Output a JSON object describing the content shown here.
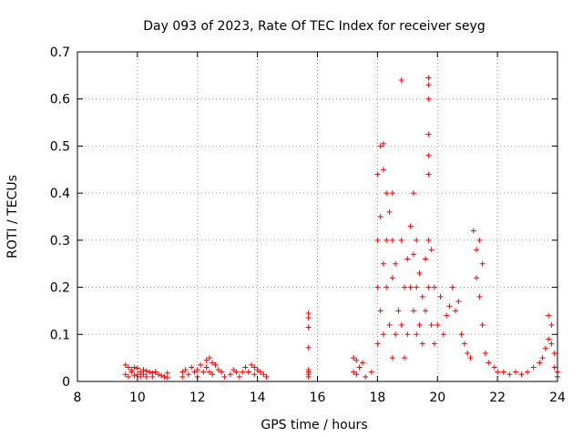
{
  "chart_data": {
    "type": "scatter",
    "title": "Day 093 of 2023, Rate Of TEC Index for receiver seyg",
    "xlabel": "GPS time / hours",
    "ylabel": "ROTI / TECUs",
    "xlim": [
      8,
      24
    ],
    "ylim": [
      0,
      0.7
    ],
    "xticks": [
      8,
      10,
      12,
      14,
      16,
      18,
      20,
      22,
      24
    ],
    "yticks": [
      0,
      0.1,
      0.2,
      0.3,
      0.4,
      0.5,
      0.6,
      0.7
    ],
    "xtick_labels": [
      "8",
      "10",
      "12",
      "14",
      "16",
      "18",
      "20",
      "22",
      "24"
    ],
    "ytick_labels": [
      "0",
      "0.1",
      "0.2",
      "0.3",
      "0.4",
      "0.5",
      "0.6",
      "0.7"
    ],
    "grid": true,
    "marker": "plus",
    "color": "#ff0000",
    "series": [
      {
        "points": [
          [
            9.6,
            0.035
          ],
          [
            9.6,
            0.015
          ],
          [
            9.7,
            0.03
          ],
          [
            9.7,
            0.01
          ],
          [
            9.8,
            0.025
          ],
          [
            9.8,
            0.02
          ],
          [
            9.9,
            0.03
          ],
          [
            9.9,
            0.012
          ],
          [
            10.0,
            0.028
          ],
          [
            10.0,
            0.015
          ],
          [
            10.1,
            0.02
          ],
          [
            10.1,
            0.01
          ],
          [
            10.2,
            0.025
          ],
          [
            10.2,
            0.015
          ],
          [
            10.3,
            0.022
          ],
          [
            10.3,
            0.01
          ],
          [
            10.4,
            0.02
          ],
          [
            10.5,
            0.018
          ],
          [
            10.5,
            0.01
          ],
          [
            10.6,
            0.02
          ],
          [
            10.7,
            0.015
          ],
          [
            10.8,
            0.012
          ],
          [
            10.9,
            0.01
          ],
          [
            11.0,
            0.018
          ],
          [
            11.0,
            0.008
          ],
          [
            11.5,
            0.02
          ],
          [
            11.5,
            0.01
          ],
          [
            11.6,
            0.025
          ],
          [
            11.7,
            0.015
          ],
          [
            11.8,
            0.03
          ],
          [
            11.9,
            0.02
          ],
          [
            12.0,
            0.025
          ],
          [
            12.0,
            0.01
          ],
          [
            12.1,
            0.035
          ],
          [
            12.2,
            0.02
          ],
          [
            12.3,
            0.045
          ],
          [
            12.3,
            0.03
          ],
          [
            12.4,
            0.05
          ],
          [
            12.4,
            0.02
          ],
          [
            12.5,
            0.04
          ],
          [
            12.5,
            0.015
          ],
          [
            12.6,
            0.035
          ],
          [
            12.7,
            0.025
          ],
          [
            12.8,
            0.02
          ],
          [
            12.9,
            0.01
          ],
          [
            13.1,
            0.015
          ],
          [
            13.2,
            0.025
          ],
          [
            13.3,
            0.02
          ],
          [
            13.4,
            0.01
          ],
          [
            13.5,
            0.02
          ],
          [
            13.6,
            0.03
          ],
          [
            13.7,
            0.02
          ],
          [
            13.8,
            0.035
          ],
          [
            13.9,
            0.03
          ],
          [
            13.9,
            0.015
          ],
          [
            14.0,
            0.025
          ],
          [
            14.1,
            0.02
          ],
          [
            14.2,
            0.015
          ],
          [
            14.3,
            0.01
          ],
          [
            15.7,
            0.145
          ],
          [
            15.7,
            0.135
          ],
          [
            15.7,
            0.115
          ],
          [
            15.7,
            0.072
          ],
          [
            15.7,
            0.025
          ],
          [
            15.7,
            0.02
          ],
          [
            15.7,
            0.015
          ],
          [
            15.7,
            0.01
          ],
          [
            17.2,
            0.05
          ],
          [
            17.3,
            0.045
          ],
          [
            17.4,
            0.03
          ],
          [
            17.5,
            0.04
          ],
          [
            17.2,
            0.02
          ],
          [
            17.3,
            0.015
          ],
          [
            17.6,
            0.01
          ],
          [
            17.8,
            0.02
          ],
          [
            18.0,
            0.08
          ],
          [
            18.0,
            0.2
          ],
          [
            18.0,
            0.3
          ],
          [
            18.0,
            0.44
          ],
          [
            18.1,
            0.5
          ],
          [
            18.1,
            0.35
          ],
          [
            18.1,
            0.15
          ],
          [
            18.2,
            0.505
          ],
          [
            18.2,
            0.45
          ],
          [
            18.2,
            0.25
          ],
          [
            18.2,
            0.1
          ],
          [
            18.3,
            0.4
          ],
          [
            18.3,
            0.3
          ],
          [
            18.3,
            0.2
          ],
          [
            18.4,
            0.36
          ],
          [
            18.4,
            0.12
          ],
          [
            18.5,
            0.4
          ],
          [
            18.5,
            0.3
          ],
          [
            18.5,
            0.22
          ],
          [
            18.5,
            0.05
          ],
          [
            18.6,
            0.25
          ],
          [
            18.6,
            0.1
          ],
          [
            18.7,
            0.15
          ],
          [
            18.8,
            0.64
          ],
          [
            18.8,
            0.3
          ],
          [
            18.8,
            0.12
          ],
          [
            18.9,
            0.2
          ],
          [
            18.9,
            0.05
          ],
          [
            19.0,
            0.26
          ],
          [
            19.0,
            0.1
          ],
          [
            19.1,
            0.33
          ],
          [
            19.1,
            0.2
          ],
          [
            19.2,
            0.4
          ],
          [
            19.2,
            0.27
          ],
          [
            19.2,
            0.15
          ],
          [
            19.3,
            0.3
          ],
          [
            19.3,
            0.2
          ],
          [
            19.3,
            0.1
          ],
          [
            19.4,
            0.23
          ],
          [
            19.4,
            0.12
          ],
          [
            19.5,
            0.18
          ],
          [
            19.5,
            0.08
          ],
          [
            19.6,
            0.26
          ],
          [
            19.6,
            0.15
          ],
          [
            19.7,
            0.645
          ],
          [
            19.7,
            0.63
          ],
          [
            19.7,
            0.6
          ],
          [
            19.7,
            0.525
          ],
          [
            19.7,
            0.48
          ],
          [
            19.7,
            0.44
          ],
          [
            19.7,
            0.3
          ],
          [
            19.7,
            0.2
          ],
          [
            19.8,
            0.28
          ],
          [
            19.8,
            0.12
          ],
          [
            19.9,
            0.2
          ],
          [
            19.9,
            0.08
          ],
          [
            20.0,
            0.12
          ],
          [
            20.1,
            0.18
          ],
          [
            20.2,
            0.1
          ],
          [
            20.3,
            0.14
          ],
          [
            20.4,
            0.16
          ],
          [
            20.5,
            0.2
          ],
          [
            20.6,
            0.15
          ],
          [
            20.7,
            0.17
          ],
          [
            20.8,
            0.1
          ],
          [
            20.9,
            0.08
          ],
          [
            21.0,
            0.06
          ],
          [
            21.1,
            0.05
          ],
          [
            21.2,
            0.32
          ],
          [
            21.3,
            0.28
          ],
          [
            21.3,
            0.22
          ],
          [
            21.4,
            0.3
          ],
          [
            21.4,
            0.18
          ],
          [
            21.5,
            0.25
          ],
          [
            21.5,
            0.12
          ],
          [
            21.6,
            0.06
          ],
          [
            21.7,
            0.04
          ],
          [
            21.9,
            0.03
          ],
          [
            22.0,
            0.02
          ],
          [
            22.2,
            0.02
          ],
          [
            22.4,
            0.015
          ],
          [
            22.6,
            0.02
          ],
          [
            22.8,
            0.015
          ],
          [
            23.0,
            0.02
          ],
          [
            23.2,
            0.03
          ],
          [
            23.4,
            0.04
          ],
          [
            23.5,
            0.05
          ],
          [
            23.6,
            0.07
          ],
          [
            23.7,
            0.09
          ],
          [
            23.7,
            0.14
          ],
          [
            23.8,
            0.12
          ],
          [
            23.8,
            0.08
          ],
          [
            23.9,
            0.06
          ],
          [
            23.9,
            0.03
          ],
          [
            24.0,
            0.02
          ],
          [
            24.0,
            0.01
          ]
        ]
      }
    ]
  }
}
